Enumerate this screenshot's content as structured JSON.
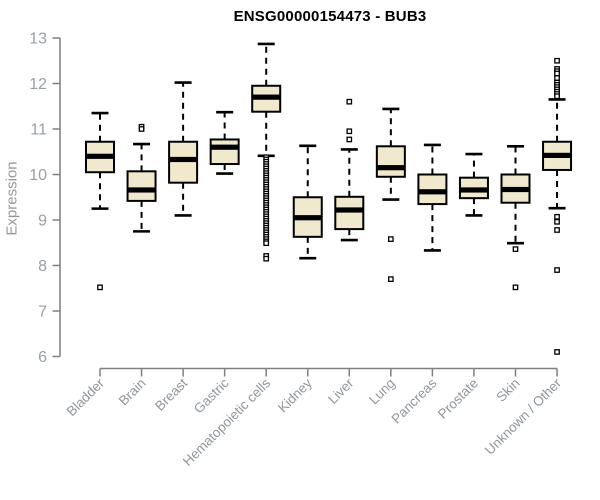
{
  "title": "ENSG00000154473 - BUB3",
  "colors": {
    "box_fill": "#f0e9cd",
    "box_border": "#000000",
    "median": "#000000",
    "whisker": "#000000",
    "axis": "#7f7f7f",
    "tick_label": "#97a0a8",
    "x_label": "#8f969d",
    "title": "#000000",
    "background": "#ffffff",
    "outlier_fill": "#ffffff"
  },
  "chart_data": {
    "type": "boxplot",
    "title": "ENSG00000154473 - BUB3",
    "xlabel": "",
    "ylabel": "Expression",
    "ylim": [
      6,
      13
    ],
    "yticks": [
      6,
      7,
      8,
      9,
      10,
      11,
      12,
      13
    ],
    "grid": false,
    "legend": false,
    "categories": [
      "Bladder",
      "Brain",
      "Breast",
      "Gastric",
      "Hematopoietic cells",
      "Kidney",
      "Liver",
      "Lung",
      "Pancreas",
      "Prostate",
      "Skin",
      "Unknown / Other"
    ],
    "series": [
      {
        "name": "Bladder",
        "whisker_low": 9.25,
        "q1": 10.05,
        "median": 10.4,
        "q3": 10.72,
        "whisker_high": 11.35,
        "outliers": [
          7.52
        ]
      },
      {
        "name": "Brain",
        "whisker_low": 8.75,
        "q1": 9.42,
        "median": 9.66,
        "q3": 10.07,
        "whisker_high": 10.67,
        "outliers": [
          11.05,
          11.0
        ]
      },
      {
        "name": "Breast",
        "whisker_low": 9.1,
        "q1": 9.82,
        "median": 10.33,
        "q3": 10.72,
        "whisker_high": 12.02,
        "outliers": []
      },
      {
        "name": "Gastric",
        "whisker_low": 10.02,
        "q1": 10.23,
        "median": 10.6,
        "q3": 10.77,
        "whisker_high": 11.37,
        "outliers": []
      },
      {
        "name": "Hematopoietic cells",
        "whisker_low": 10.41,
        "q1": 11.38,
        "median": 11.7,
        "q3": 11.95,
        "whisker_high": 12.87,
        "outliers": [
          10.38,
          10.33,
          10.28,
          10.23,
          10.18,
          10.13,
          10.08,
          10.03,
          9.98,
          9.93,
          9.88,
          9.83,
          9.78,
          9.73,
          9.68,
          9.63,
          9.58,
          9.53,
          9.48,
          9.43,
          9.38,
          9.33,
          9.28,
          9.23,
          9.18,
          9.13,
          9.08,
          9.03,
          8.98,
          8.93,
          8.88,
          8.83,
          8.78,
          8.73,
          8.68,
          8.63,
          8.58,
          8.53,
          8.49,
          8.21,
          8.15
        ]
      },
      {
        "name": "Kidney",
        "whisker_low": 8.16,
        "q1": 8.63,
        "median": 9.05,
        "q3": 9.5,
        "whisker_high": 10.63,
        "outliers": []
      },
      {
        "name": "Liver",
        "whisker_low": 8.56,
        "q1": 8.8,
        "median": 9.22,
        "q3": 9.51,
        "whisker_high": 10.55,
        "outliers": [
          11.6,
          10.95,
          10.77
        ]
      },
      {
        "name": "Lung",
        "whisker_low": 9.45,
        "q1": 9.95,
        "median": 10.15,
        "q3": 10.62,
        "whisker_high": 11.44,
        "outliers": [
          8.58,
          7.7
        ]
      },
      {
        "name": "Pancreas",
        "whisker_low": 8.33,
        "q1": 9.35,
        "median": 9.62,
        "q3": 10.0,
        "whisker_high": 10.65,
        "outliers": []
      },
      {
        "name": "Prostate",
        "whisker_low": 9.1,
        "q1": 9.48,
        "median": 9.66,
        "q3": 9.93,
        "whisker_high": 10.45,
        "outliers": []
      },
      {
        "name": "Skin",
        "whisker_low": 8.49,
        "q1": 9.38,
        "median": 9.67,
        "q3": 10.0,
        "whisker_high": 10.62,
        "outliers": [
          8.36,
          7.52
        ]
      },
      {
        "name": "Unknown / Other",
        "whisker_low": 9.26,
        "q1": 10.1,
        "median": 10.42,
        "q3": 10.72,
        "whisker_high": 11.65,
        "outliers": [
          12.5,
          12.32,
          12.27,
          12.22,
          12.12,
          12.02,
          11.97,
          11.92,
          11.87,
          11.82,
          11.77,
          11.72,
          9.07,
          8.96,
          8.78,
          7.9,
          6.1
        ]
      }
    ]
  }
}
